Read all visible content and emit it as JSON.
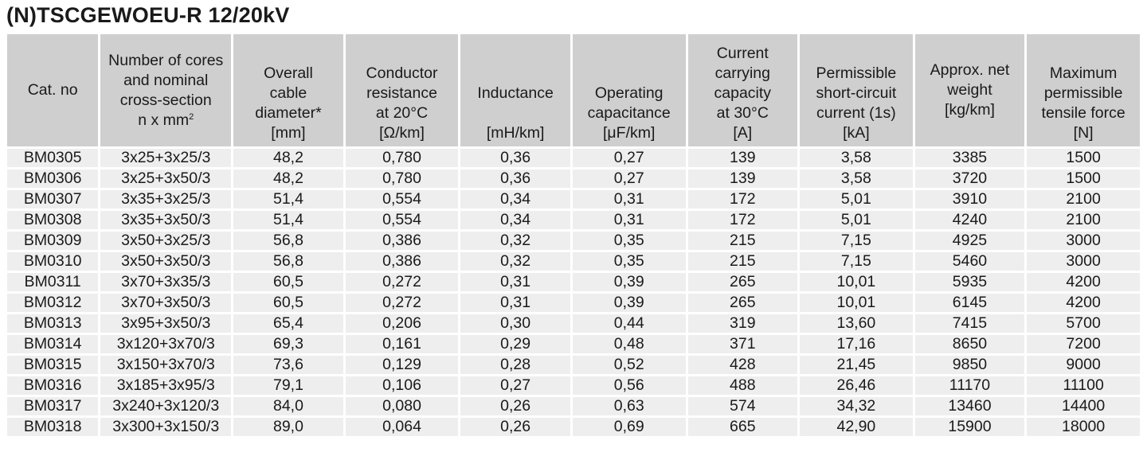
{
  "title": "(N)TSCGEWOEU-R 12/20kV",
  "headers": {
    "cat_no": "Cat. no",
    "cores": [
      "Number of cores",
      "and nominal",
      "cross-section",
      "n x mm"
    ],
    "cores_sup": "2",
    "diameter": [
      "Overall",
      "cable",
      "diameter*",
      "[mm]"
    ],
    "resistance": [
      "Conductor",
      "resistance",
      "at 20°C",
      "[Ω/km]"
    ],
    "inductance": [
      "Inductance",
      "[mH/km]"
    ],
    "capacitance": [
      "Operating",
      "capacitance",
      "[μF/km]"
    ],
    "current": [
      "Current",
      "carrying",
      "capacity",
      "at 30°C",
      "[A]"
    ],
    "short_circuit": [
      "Permissible",
      "short-circuit",
      "current (1s)",
      "[kA]"
    ],
    "weight": [
      "Approx. net",
      "weight",
      "[kg/km]"
    ],
    "tensile": [
      "Maximum",
      "permissible",
      "tensile force",
      "[N]"
    ]
  },
  "rows": [
    [
      "BM0305",
      "3x25+3x25/3",
      "48,2",
      "0,780",
      "0,36",
      "0,27",
      "139",
      "3,58",
      "3385",
      "1500"
    ],
    [
      "BM0306",
      "3x25+3x50/3",
      "48,2",
      "0,780",
      "0,36",
      "0,27",
      "139",
      "3,58",
      "3720",
      "1500"
    ],
    [
      "BM0307",
      "3x35+3x25/3",
      "51,4",
      "0,554",
      "0,34",
      "0,31",
      "172",
      "5,01",
      "3910",
      "2100"
    ],
    [
      "BM0308",
      "3x35+3x50/3",
      "51,4",
      "0,554",
      "0,34",
      "0,31",
      "172",
      "5,01",
      "4240",
      "2100"
    ],
    [
      "BM0309",
      "3x50+3x25/3",
      "56,8",
      "0,386",
      "0,32",
      "0,35",
      "215",
      "7,15",
      "4925",
      "3000"
    ],
    [
      "BM0310",
      "3x50+3x50/3",
      "56,8",
      "0,386",
      "0,32",
      "0,35",
      "215",
      "7,15",
      "5460",
      "3000"
    ],
    [
      "BM0311",
      "3x70+3x35/3",
      "60,5",
      "0,272",
      "0,31",
      "0,39",
      "265",
      "10,01",
      "5935",
      "4200"
    ],
    [
      "BM0312",
      "3x70+3x50/3",
      "60,5",
      "0,272",
      "0,31",
      "0,39",
      "265",
      "10,01",
      "6145",
      "4200"
    ],
    [
      "BM0313",
      "3x95+3x50/3",
      "65,4",
      "0,206",
      "0,30",
      "0,44",
      "319",
      "13,60",
      "7415",
      "5700"
    ],
    [
      "BM0314",
      "3x120+3x70/3",
      "69,3",
      "0,161",
      "0,29",
      "0,48",
      "371",
      "17,16",
      "8650",
      "7200"
    ],
    [
      "BM0315",
      "3x150+3x70/3",
      "73,6",
      "0,129",
      "0,28",
      "0,52",
      "428",
      "21,45",
      "9850",
      "9000"
    ],
    [
      "BM0316",
      "3x185+3x95/3",
      "79,1",
      "0,106",
      "0,27",
      "0,56",
      "488",
      "26,46",
      "11170",
      "11100"
    ],
    [
      "BM0317",
      "3x240+3x120/3",
      "84,0",
      "0,080",
      "0,26",
      "0,63",
      "574",
      "34,32",
      "13460",
      "14400"
    ],
    [
      "BM0318",
      "3x300+3x150/3",
      "89,0",
      "0,064",
      "0,26",
      "0,69",
      "665",
      "42,90",
      "15900",
      "18000"
    ]
  ]
}
